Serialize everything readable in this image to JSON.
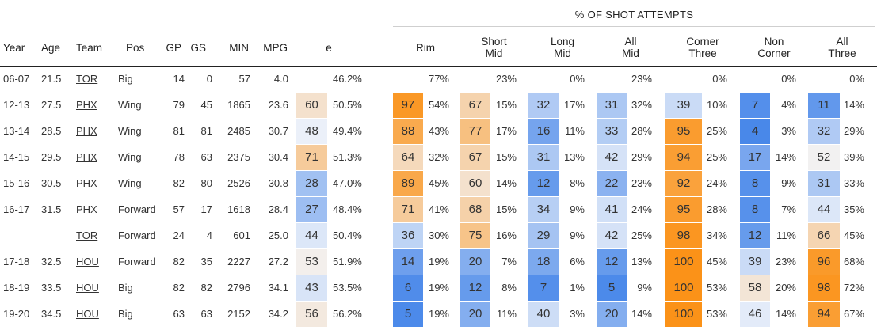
{
  "table": {
    "group_header": "% OF SHOT ATTEMPTS",
    "headers": {
      "year": "Year",
      "age": "Age",
      "team": "Team",
      "pos": "Pos",
      "gp": "GP",
      "gs": "GS",
      "min": "MIN",
      "mpg": "MPG",
      "efg": "eFG%",
      "rim": [
        "Rim"
      ],
      "short_mid": [
        "Short",
        "Mid"
      ],
      "long_mid": [
        "Long",
        "Mid"
      ],
      "all_mid": [
        "All",
        "Mid"
      ],
      "corner_three": [
        "Corner",
        "Three"
      ],
      "non_corner": [
        "Non",
        "Corner"
      ],
      "all_three": [
        "All",
        "Three"
      ]
    },
    "rows": [
      {
        "year": "06-07",
        "age": "21.5",
        "team": "TOR",
        "pos": "Big",
        "gp": "14",
        "gs": "0",
        "min": "57",
        "mpg": "4.0",
        "efg": {
          "rank": "",
          "pct": "46.2%"
        },
        "rim": {
          "rank": "",
          "pct": "77%"
        },
        "short_mid": {
          "rank": "",
          "pct": "23%"
        },
        "long_mid": {
          "rank": "",
          "pct": "0%"
        },
        "all_mid": {
          "rank": "",
          "pct": "23%"
        },
        "corner_three": {
          "rank": "",
          "pct": "0%"
        },
        "non_corner": {
          "rank": "",
          "pct": "0%"
        },
        "all_three": {
          "rank": "",
          "pct": "0%"
        }
      },
      {
        "year": "12-13",
        "age": "27.5",
        "team": "PHX",
        "pos": "Wing",
        "gp": "79",
        "gs": "45",
        "min": "1865",
        "mpg": "23.6",
        "efg": {
          "rank": "60",
          "pct": "50.5%"
        },
        "rim": {
          "rank": "97",
          "pct": "54%"
        },
        "short_mid": {
          "rank": "67",
          "pct": "15%"
        },
        "long_mid": {
          "rank": "32",
          "pct": "17%"
        },
        "all_mid": {
          "rank": "31",
          "pct": "32%"
        },
        "corner_three": {
          "rank": "39",
          "pct": "10%"
        },
        "non_corner": {
          "rank": "7",
          "pct": "4%"
        },
        "all_three": {
          "rank": "11",
          "pct": "14%"
        }
      },
      {
        "year": "13-14",
        "age": "28.5",
        "team": "PHX",
        "pos": "Wing",
        "gp": "81",
        "gs": "81",
        "min": "2485",
        "mpg": "30.7",
        "efg": {
          "rank": "48",
          "pct": "49.4%"
        },
        "rim": {
          "rank": "88",
          "pct": "43%"
        },
        "short_mid": {
          "rank": "77",
          "pct": "17%"
        },
        "long_mid": {
          "rank": "16",
          "pct": "11%"
        },
        "all_mid": {
          "rank": "33",
          "pct": "28%"
        },
        "corner_three": {
          "rank": "95",
          "pct": "25%"
        },
        "non_corner": {
          "rank": "4",
          "pct": "3%"
        },
        "all_three": {
          "rank": "32",
          "pct": "29%"
        }
      },
      {
        "year": "14-15",
        "age": "29.5",
        "team": "PHX",
        "pos": "Wing",
        "gp": "78",
        "gs": "63",
        "min": "2375",
        "mpg": "30.4",
        "efg": {
          "rank": "71",
          "pct": "51.3%"
        },
        "rim": {
          "rank": "64",
          "pct": "32%"
        },
        "short_mid": {
          "rank": "67",
          "pct": "15%"
        },
        "long_mid": {
          "rank": "31",
          "pct": "13%"
        },
        "all_mid": {
          "rank": "42",
          "pct": "29%"
        },
        "corner_three": {
          "rank": "94",
          "pct": "25%"
        },
        "non_corner": {
          "rank": "17",
          "pct": "14%"
        },
        "all_three": {
          "rank": "52",
          "pct": "39%"
        }
      },
      {
        "year": "15-16",
        "age": "30.5",
        "team": "PHX",
        "pos": "Wing",
        "gp": "82",
        "gs": "80",
        "min": "2526",
        "mpg": "30.8",
        "efg": {
          "rank": "28",
          "pct": "47.0%"
        },
        "rim": {
          "rank": "89",
          "pct": "45%"
        },
        "short_mid": {
          "rank": "60",
          "pct": "14%"
        },
        "long_mid": {
          "rank": "12",
          "pct": "8%"
        },
        "all_mid": {
          "rank": "22",
          "pct": "23%"
        },
        "corner_three": {
          "rank": "92",
          "pct": "24%"
        },
        "non_corner": {
          "rank": "8",
          "pct": "9%"
        },
        "all_three": {
          "rank": "31",
          "pct": "33%"
        }
      },
      {
        "year": "16-17",
        "age": "31.5",
        "team": "PHX",
        "pos": "Forward",
        "gp": "57",
        "gs": "17",
        "min": "1618",
        "mpg": "28.4",
        "efg": {
          "rank": "27",
          "pct": "48.4%"
        },
        "rim": {
          "rank": "71",
          "pct": "41%"
        },
        "short_mid": {
          "rank": "68",
          "pct": "15%"
        },
        "long_mid": {
          "rank": "34",
          "pct": "9%"
        },
        "all_mid": {
          "rank": "41",
          "pct": "24%"
        },
        "corner_three": {
          "rank": "95",
          "pct": "28%"
        },
        "non_corner": {
          "rank": "8",
          "pct": "7%"
        },
        "all_three": {
          "rank": "44",
          "pct": "35%"
        }
      },
      {
        "year": "",
        "age": "",
        "team": "TOR",
        "pos": "Forward",
        "gp": "24",
        "gs": "4",
        "min": "601",
        "mpg": "25.0",
        "efg": {
          "rank": "44",
          "pct": "50.4%"
        },
        "rim": {
          "rank": "36",
          "pct": "30%"
        },
        "short_mid": {
          "rank": "75",
          "pct": "16%"
        },
        "long_mid": {
          "rank": "29",
          "pct": "9%"
        },
        "all_mid": {
          "rank": "42",
          "pct": "25%"
        },
        "corner_three": {
          "rank": "98",
          "pct": "34%"
        },
        "non_corner": {
          "rank": "12",
          "pct": "11%"
        },
        "all_three": {
          "rank": "66",
          "pct": "45%"
        }
      },
      {
        "year": "17-18",
        "age": "32.5",
        "team": "HOU",
        "pos": "Forward",
        "gp": "82",
        "gs": "35",
        "min": "2227",
        "mpg": "27.2",
        "efg": {
          "rank": "53",
          "pct": "51.9%"
        },
        "rim": {
          "rank": "14",
          "pct": "19%"
        },
        "short_mid": {
          "rank": "20",
          "pct": "7%"
        },
        "long_mid": {
          "rank": "18",
          "pct": "6%"
        },
        "all_mid": {
          "rank": "12",
          "pct": "13%"
        },
        "corner_three": {
          "rank": "100",
          "pct": "45%"
        },
        "non_corner": {
          "rank": "39",
          "pct": "23%"
        },
        "all_three": {
          "rank": "96",
          "pct": "68%"
        }
      },
      {
        "year": "18-19",
        "age": "33.5",
        "team": "HOU",
        "pos": "Big",
        "gp": "82",
        "gs": "82",
        "min": "2796",
        "mpg": "34.1",
        "efg": {
          "rank": "43",
          "pct": "53.5%"
        },
        "rim": {
          "rank": "6",
          "pct": "19%"
        },
        "short_mid": {
          "rank": "12",
          "pct": "8%"
        },
        "long_mid": {
          "rank": "7",
          "pct": "1%"
        },
        "all_mid": {
          "rank": "5",
          "pct": "9%"
        },
        "corner_three": {
          "rank": "100",
          "pct": "53%"
        },
        "non_corner": {
          "rank": "58",
          "pct": "20%"
        },
        "all_three": {
          "rank": "98",
          "pct": "72%"
        }
      },
      {
        "year": "19-20",
        "age": "34.5",
        "team": "HOU",
        "pos": "Big",
        "gp": "63",
        "gs": "63",
        "min": "2152",
        "mpg": "34.2",
        "efg": {
          "rank": "56",
          "pct": "56.2%"
        },
        "rim": {
          "rank": "5",
          "pct": "19%"
        },
        "short_mid": {
          "rank": "20",
          "pct": "11%"
        },
        "long_mid": {
          "rank": "40",
          "pct": "3%"
        },
        "all_mid": {
          "rank": "20",
          "pct": "14%"
        },
        "corner_three": {
          "rank": "100",
          "pct": "53%"
        },
        "non_corner": {
          "rank": "46",
          "pct": "14%"
        },
        "all_three": {
          "rank": "94",
          "pct": "67%"
        }
      }
    ]
  }
}
